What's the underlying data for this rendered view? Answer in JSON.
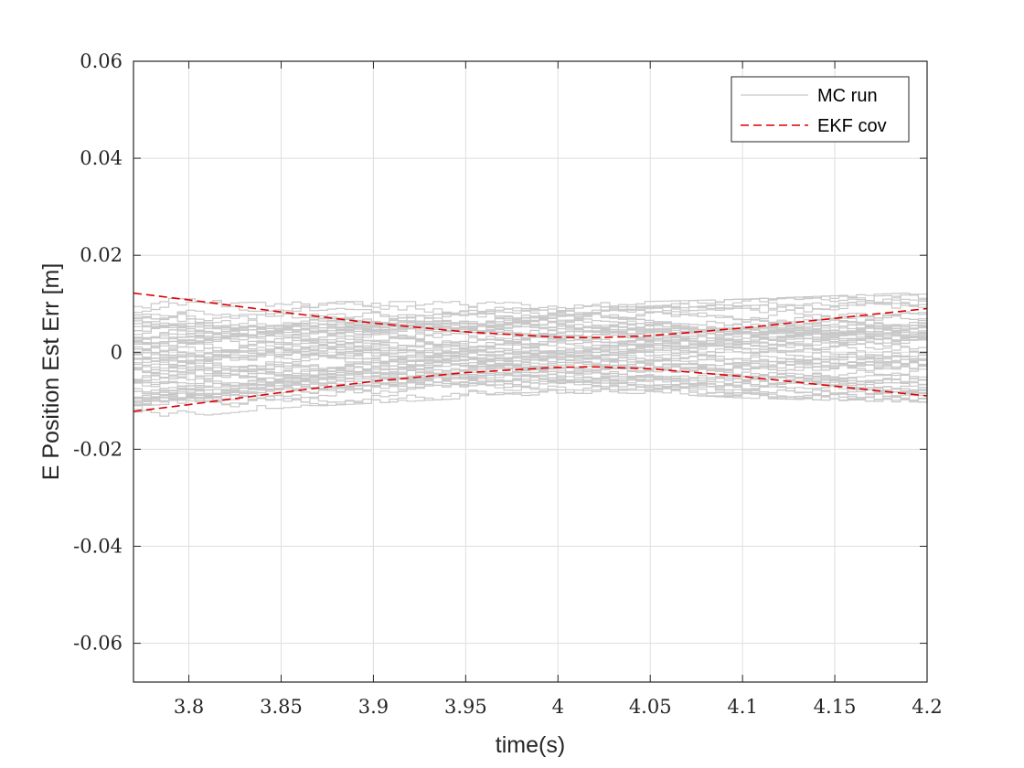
{
  "chart_data": {
    "type": "line",
    "xlabel": "time(s)",
    "ylabel": "E Position Est Err [m]",
    "xlim": [
      3.77,
      4.2
    ],
    "ylim": [
      -0.068,
      0.06
    ],
    "xticks": [
      3.8,
      3.85,
      3.9,
      3.95,
      4,
      4.05,
      4.1,
      4.15,
      4.2
    ],
    "xtick_labels": [
      "3.8",
      "3.85",
      "3.9",
      "3.95",
      "4",
      "4.05",
      "4.1",
      "4.15",
      "4.2"
    ],
    "yticks": [
      0.06,
      0.04,
      0.02,
      0,
      -0.02,
      -0.04,
      -0.06
    ],
    "ytick_labels": [
      "0.06",
      "0.04",
      "0.02",
      "0",
      "-0.02",
      "-0.04",
      "-0.06"
    ],
    "grid": true,
    "legend_position": "top-right",
    "series": [
      {
        "name": "MC run",
        "color": "#c8c8c8",
        "style": "solid",
        "note": "Monte Carlo ensemble of estimation error runs, roughly within ±0.012 m",
        "envelope_x": [
          3.77,
          3.85,
          3.95,
          4.0,
          4.05,
          4.1,
          4.2
        ],
        "envelope_upper": [
          0.012,
          0.011,
          0.011,
          0.0105,
          0.011,
          0.0115,
          0.013
        ],
        "envelope_lower": [
          -0.015,
          -0.012,
          -0.01,
          -0.009,
          -0.009,
          -0.01,
          -0.011
        ]
      },
      {
        "name": "EKF cov",
        "color": "#e00000",
        "style": "dashed",
        "x": [
          3.77,
          3.8,
          3.85,
          3.9,
          3.95,
          4.0,
          4.02,
          4.05,
          4.1,
          4.15,
          4.2
        ],
        "upper": [
          0.0122,
          0.0108,
          0.0083,
          0.006,
          0.0042,
          0.0031,
          0.003,
          0.0034,
          0.005,
          0.007,
          0.009
        ],
        "lower": [
          -0.0122,
          -0.0108,
          -0.0083,
          -0.006,
          -0.0042,
          -0.0031,
          -0.003,
          -0.0034,
          -0.005,
          -0.007,
          -0.009
        ]
      }
    ]
  },
  "legend": {
    "items": [
      {
        "label": "MC run",
        "color": "#c8c8c8",
        "style": "solid"
      },
      {
        "label": "EKF cov",
        "color": "#e00000",
        "style": "dashed"
      }
    ]
  }
}
